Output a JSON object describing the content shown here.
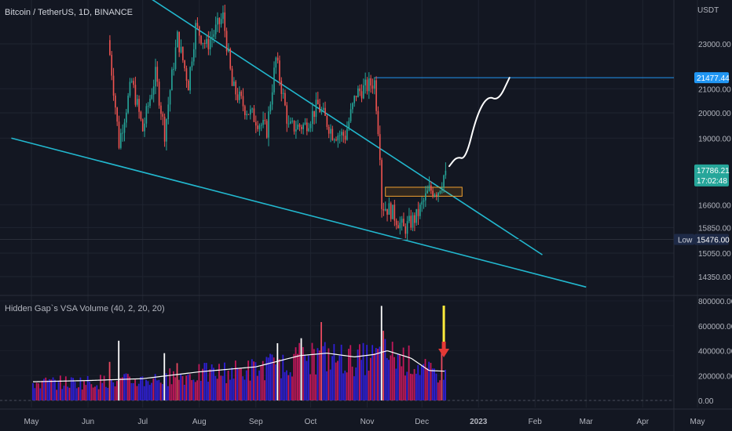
{
  "header": {
    "title": "Bitcoin / TetherUS, 1D, BINANCE",
    "currency": "USDT"
  },
  "volume_panel": {
    "title": "Hidden Gap`s VSA Volume (40, 2, 20, 20)"
  },
  "price_tags": {
    "level": "21477.44",
    "current": "17786.21",
    "countdown": "17:02:48",
    "low_label": "Low",
    "low_value": "15476.00"
  },
  "colors": {
    "background": "#131722",
    "up": "#26a69a",
    "down": "#ef5350",
    "trendline": "#22b8cf",
    "level_line": "#2196f3",
    "volume_blue": "#2f1fd6",
    "volume_red": "#c2185b",
    "volume_ma": "#ffffff",
    "arrow_yellow": "#ffeb3b",
    "arrow_red": "#e53935"
  },
  "chart_data": [
    {
      "type": "candlestick",
      "title": "Bitcoin / TetherUS, 1D, BINANCE",
      "x_ticks": [
        "May",
        "Jun",
        "Jul",
        "Aug",
        "Sep",
        "Oct",
        "Nov",
        "Dec",
        "2023",
        "Feb",
        "Mar",
        "Apr",
        "May"
      ],
      "y_ticks": [
        23000,
        21000,
        20000,
        19000,
        16600,
        15850,
        15050,
        14350
      ],
      "y_tick_labels": [
        "23000.00",
        "21000.00",
        "20000.00",
        "19000.00",
        "16600.00",
        "15850.00",
        "15050.00",
        "14350.00"
      ],
      "ylim": [
        13750,
        25000
      ],
      "series": [
        {
          "name": "price",
          "close_path": [
            [
              "2022-06-13",
              22500
            ],
            [
              "2022-06-18",
              18800
            ],
            [
              "2022-06-25",
              21300
            ],
            [
              "2022-07-01",
              19300
            ],
            [
              "2022-07-08",
              21600
            ],
            [
              "2022-07-13",
              19200
            ],
            [
              "2022-07-20",
              23300
            ],
            [
              "2022-07-26",
              21200
            ],
            [
              "2022-07-30",
              23800
            ],
            [
              "2022-08-05",
              22900
            ],
            [
              "2022-08-14",
              24300
            ],
            [
              "2022-08-19",
              21100
            ],
            [
              "2022-08-26",
              20200
            ],
            [
              "2022-09-07",
              19300
            ],
            [
              "2022-09-12",
              22300
            ],
            [
              "2022-09-19",
              19400
            ],
            [
              "2022-09-28",
              19500
            ],
            [
              "2022-10-05",
              20300
            ],
            [
              "2022-10-13",
              19200
            ],
            [
              "2022-10-20",
              19100
            ],
            [
              "2022-10-26",
              20800
            ],
            [
              "2022-11-05",
              21300
            ],
            [
              "2022-11-08",
              18500
            ],
            [
              "2022-11-09",
              16600
            ],
            [
              "2022-11-14",
              16400
            ],
            [
              "2022-11-21",
              15800
            ],
            [
              "2022-11-28",
              16200
            ],
            [
              "2022-12-05",
              17100
            ],
            [
              "2022-12-10",
              17100
            ],
            [
              "2022-12-14",
              17786.21
            ]
          ]
        }
      ],
      "annotations": {
        "horizontal_level": 21477.44,
        "period_low": 15476.0,
        "resistance_trendline": [
          [
            "2022-05-26",
            27800
          ],
          [
            "2023-02-05",
            15000
          ]
        ],
        "support_trendline": [
          [
            "2022-04-20",
            19000
          ],
          [
            "2023-03-01",
            14050
          ]
        ],
        "consolidation_box": {
          "from": "2022-11-11",
          "to": "2022-12-23",
          "high": 17200,
          "low": 16890
        },
        "projection_path": [
          [
            "2022-12-16",
            17950
          ],
          [
            "2022-12-20",
            18300
          ],
          [
            "2022-12-25",
            18200
          ],
          [
            "2022-12-31",
            19900
          ],
          [
            "2023-01-06",
            20700
          ],
          [
            "2023-01-12",
            20500
          ],
          [
            "2023-01-18",
            21477.44
          ]
        ]
      }
    },
    {
      "type": "bar",
      "title": "Hidden Gap`s VSA Volume (40, 2, 20, 20)",
      "y_ticks": [
        0,
        200000,
        400000,
        600000,
        800000
      ],
      "y_tick_labels": [
        "0.00",
        "200000.00",
        "400000.00",
        "600000.00",
        "800000.00"
      ],
      "ylim": [
        0,
        800000
      ],
      "volume_ma_path": [
        [
          "2022-05-01",
          150000
        ],
        [
          "2022-06-01",
          160000
        ],
        [
          "2022-07-01",
          175000
        ],
        [
          "2022-08-01",
          230000
        ],
        [
          "2022-09-01",
          270000
        ],
        [
          "2022-09-25",
          360000
        ],
        [
          "2022-10-10",
          380000
        ],
        [
          "2022-10-25",
          350000
        ],
        [
          "2022-11-05",
          370000
        ],
        [
          "2022-11-12",
          400000
        ],
        [
          "2022-11-25",
          340000
        ],
        [
          "2022-12-05",
          240000
        ],
        [
          "2022-12-14",
          235000
        ]
      ],
      "spikes": [
        [
          "2022-06-13",
          310000
        ],
        [
          "2022-06-18",
          480000
        ],
        [
          "2022-07-13",
          380000
        ],
        [
          "2022-07-20",
          300000
        ],
        [
          "2022-09-13",
          460000
        ],
        [
          "2022-09-26",
          500000
        ],
        [
          "2022-10-07",
          630000
        ],
        [
          "2022-11-09",
          760000
        ],
        [
          "2022-11-10",
          560000
        ],
        [
          "2022-12-12",
          400000
        ]
      ],
      "annotations": {
        "arrow_date": "2022-12-13"
      }
    }
  ]
}
